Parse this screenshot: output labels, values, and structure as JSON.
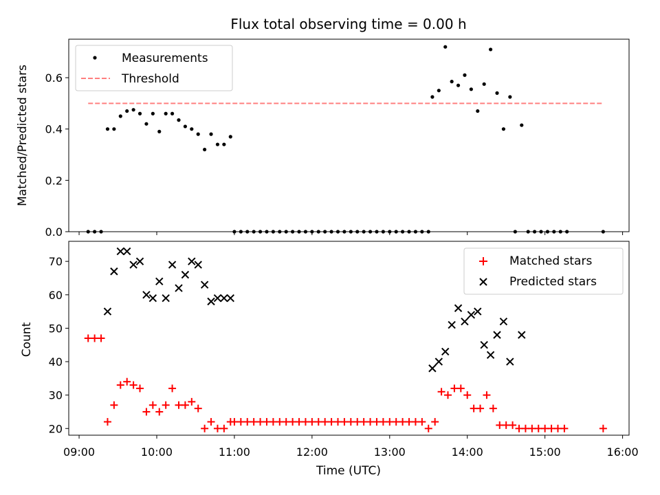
{
  "chart_data": [
    {
      "type": "scatter",
      "title": "Flux total observing time = 0.00 h",
      "xlabel": "",
      "ylabel": "Matched/Predicted stars",
      "xlim": [
        "08:52",
        "16:05"
      ],
      "ylim": [
        0,
        0.75
      ],
      "y_ticks": [
        "0.0",
        "0.2",
        "0.4",
        "0.6"
      ],
      "y_tick_values": [
        0,
        0.2,
        0.4,
        0.6
      ],
      "x_tick_values": [
        "09:00",
        "10:00",
        "11:00",
        "12:00",
        "13:00",
        "14:00",
        "15:00",
        "16:00"
      ],
      "grid": false,
      "legend_position": "top-left",
      "legend": {
        "measurements_label": "Measurements",
        "threshold_label": "Threshold"
      },
      "threshold": {
        "value": 0.5,
        "x_start": "09:07",
        "x_end": "15:45",
        "color": "#ff7f7f"
      },
      "series": [
        {
          "name": "Measurements",
          "color": "#000000",
          "points": [
            [
              "09:07",
              0
            ],
            [
              "09:12",
              0
            ],
            [
              "09:17",
              0
            ],
            [
              "09:22",
              0.4
            ],
            [
              "09:27",
              0.4
            ],
            [
              "09:32",
              0.45
            ],
            [
              "09:37",
              0.47
            ],
            [
              "09:42",
              0.475
            ],
            [
              "09:47",
              0.46
            ],
            [
              "09:52",
              0.42
            ],
            [
              "09:57",
              0.46
            ],
            [
              "10:02",
              0.39
            ],
            [
              "10:07",
              0.46
            ],
            [
              "10:12",
              0.46
            ],
            [
              "10:17",
              0.435
            ],
            [
              "10:22",
              0.41
            ],
            [
              "10:27",
              0.4
            ],
            [
              "10:32",
              0.38
            ],
            [
              "10:37",
              0.32
            ],
            [
              "10:42",
              0.38
            ],
            [
              "10:47",
              0.34
            ],
            [
              "10:52",
              0.34
            ],
            [
              "10:57",
              0.37
            ],
            [
              "11:00",
              0
            ],
            [
              "11:05",
              0
            ],
            [
              "11:10",
              0
            ],
            [
              "11:15",
              0
            ],
            [
              "11:20",
              0
            ],
            [
              "11:25",
              0
            ],
            [
              "11:30",
              0
            ],
            [
              "11:35",
              0
            ],
            [
              "11:40",
              0
            ],
            [
              "11:45",
              0
            ],
            [
              "11:50",
              0
            ],
            [
              "11:55",
              0
            ],
            [
              "12:00",
              0
            ],
            [
              "12:05",
              0
            ],
            [
              "12:10",
              0
            ],
            [
              "12:15",
              0
            ],
            [
              "12:20",
              0
            ],
            [
              "12:25",
              0
            ],
            [
              "12:30",
              0
            ],
            [
              "12:35",
              0
            ],
            [
              "12:40",
              0
            ],
            [
              "12:45",
              0
            ],
            [
              "12:50",
              0
            ],
            [
              "12:55",
              0
            ],
            [
              "13:00",
              0
            ],
            [
              "13:05",
              0
            ],
            [
              "13:10",
              0
            ],
            [
              "13:15",
              0
            ],
            [
              "13:20",
              0
            ],
            [
              "13:25",
              0
            ],
            [
              "13:30",
              0
            ],
            [
              "13:33",
              0.525
            ],
            [
              "13:38",
              0.55
            ],
            [
              "13:43",
              0.72
            ],
            [
              "13:48",
              0.585
            ],
            [
              "13:53",
              0.57
            ],
            [
              "13:58",
              0.61
            ],
            [
              "14:03",
              0.555
            ],
            [
              "14:08",
              0.47
            ],
            [
              "14:13",
              0.575
            ],
            [
              "14:18",
              0.71
            ],
            [
              "14:23",
              0.54
            ],
            [
              "14:28",
              0.4
            ],
            [
              "14:33",
              0.525
            ],
            [
              "14:37",
              0
            ],
            [
              "14:42",
              0.415
            ],
            [
              "14:47",
              0
            ],
            [
              "14:52",
              0
            ],
            [
              "14:57",
              0
            ],
            [
              "15:02",
              0
            ],
            [
              "15:07",
              0
            ],
            [
              "15:12",
              0
            ],
            [
              "15:17",
              0
            ],
            [
              "15:45",
              0
            ]
          ]
        }
      ]
    },
    {
      "type": "scatter",
      "title": "",
      "xlabel": "Time (UTC)",
      "ylabel": "Count",
      "xlim": [
        "08:52",
        "16:05"
      ],
      "ylim": [
        18,
        76
      ],
      "x_ticks": [
        "09:00",
        "10:00",
        "11:00",
        "12:00",
        "13:00",
        "14:00",
        "15:00",
        "16:00"
      ],
      "y_ticks": [
        "20",
        "30",
        "40",
        "50",
        "60",
        "70"
      ],
      "y_tick_values": [
        20,
        30,
        40,
        50,
        60,
        70
      ],
      "grid": false,
      "legend_position": "top-right",
      "series": [
        {
          "name": "Matched stars",
          "color": "#ff0000",
          "marker": "plus",
          "points": [
            [
              "09:07",
              47
            ],
            [
              "09:12",
              47
            ],
            [
              "09:17",
              47
            ],
            [
              "09:22",
              22
            ],
            [
              "09:27",
              27
            ],
            [
              "09:32",
              33
            ],
            [
              "09:37",
              34
            ],
            [
              "09:42",
              33
            ],
            [
              "09:47",
              32
            ],
            [
              "09:52",
              25
            ],
            [
              "09:57",
              27
            ],
            [
              "10:02",
              25
            ],
            [
              "10:07",
              27
            ],
            [
              "10:12",
              32
            ],
            [
              "10:17",
              27
            ],
            [
              "10:22",
              27
            ],
            [
              "10:27",
              28
            ],
            [
              "10:32",
              26
            ],
            [
              "10:37",
              20
            ],
            [
              "10:42",
              22
            ],
            [
              "10:47",
              20
            ],
            [
              "10:52",
              20
            ],
            [
              "10:57",
              22
            ],
            [
              "11:00",
              22
            ],
            [
              "11:05",
              22
            ],
            [
              "11:10",
              22
            ],
            [
              "11:15",
              22
            ],
            [
              "11:20",
              22
            ],
            [
              "11:25",
              22
            ],
            [
              "11:30",
              22
            ],
            [
              "11:35",
              22
            ],
            [
              "11:40",
              22
            ],
            [
              "11:45",
              22
            ],
            [
              "11:50",
              22
            ],
            [
              "11:55",
              22
            ],
            [
              "12:00",
              22
            ],
            [
              "12:05",
              22
            ],
            [
              "12:10",
              22
            ],
            [
              "12:15",
              22
            ],
            [
              "12:20",
              22
            ],
            [
              "12:25",
              22
            ],
            [
              "12:30",
              22
            ],
            [
              "12:35",
              22
            ],
            [
              "12:40",
              22
            ],
            [
              "12:45",
              22
            ],
            [
              "12:50",
              22
            ],
            [
              "12:55",
              22
            ],
            [
              "13:00",
              22
            ],
            [
              "13:05",
              22
            ],
            [
              "13:10",
              22
            ],
            [
              "13:15",
              22
            ],
            [
              "13:20",
              22
            ],
            [
              "13:25",
              22
            ],
            [
              "13:30",
              20
            ],
            [
              "13:35",
              22
            ],
            [
              "13:40",
              31
            ],
            [
              "13:45",
              30
            ],
            [
              "13:50",
              32
            ],
            [
              "13:55",
              32
            ],
            [
              "14:00",
              30
            ],
            [
              "14:05",
              26
            ],
            [
              "14:10",
              26
            ],
            [
              "14:15",
              30
            ],
            [
              "14:20",
              26
            ],
            [
              "14:25",
              21
            ],
            [
              "14:30",
              21
            ],
            [
              "14:35",
              21
            ],
            [
              "14:40",
              20
            ],
            [
              "14:45",
              20
            ],
            [
              "14:50",
              20
            ],
            [
              "14:55",
              20
            ],
            [
              "15:00",
              20
            ],
            [
              "15:05",
              20
            ],
            [
              "15:10",
              20
            ],
            [
              "15:15",
              20
            ],
            [
              "15:45",
              20
            ]
          ]
        },
        {
          "name": "Predicted stars",
          "color": "#000000",
          "marker": "x",
          "points": [
            [
              "09:22",
              55
            ],
            [
              "09:27",
              67
            ],
            [
              "09:32",
              73
            ],
            [
              "09:37",
              73
            ],
            [
              "09:42",
              69
            ],
            [
              "09:47",
              70
            ],
            [
              "09:52",
              60
            ],
            [
              "09:57",
              59
            ],
            [
              "10:02",
              64
            ],
            [
              "10:07",
              59
            ],
            [
              "10:12",
              69
            ],
            [
              "10:17",
              62
            ],
            [
              "10:22",
              66
            ],
            [
              "10:27",
              70
            ],
            [
              "10:32",
              69
            ],
            [
              "10:37",
              63
            ],
            [
              "10:42",
              58
            ],
            [
              "10:47",
              59
            ],
            [
              "10:52",
              59
            ],
            [
              "10:57",
              59
            ],
            [
              "13:33",
              38
            ],
            [
              "13:38",
              40
            ],
            [
              "13:43",
              43
            ],
            [
              "13:48",
              51
            ],
            [
              "13:53",
              56
            ],
            [
              "13:58",
              52
            ],
            [
              "14:03",
              54
            ],
            [
              "14:08",
              55
            ],
            [
              "14:13",
              45
            ],
            [
              "14:18",
              42
            ],
            [
              "14:23",
              48
            ],
            [
              "14:28",
              52
            ],
            [
              "14:33",
              40
            ],
            [
              "14:42",
              48
            ]
          ]
        }
      ]
    }
  ]
}
